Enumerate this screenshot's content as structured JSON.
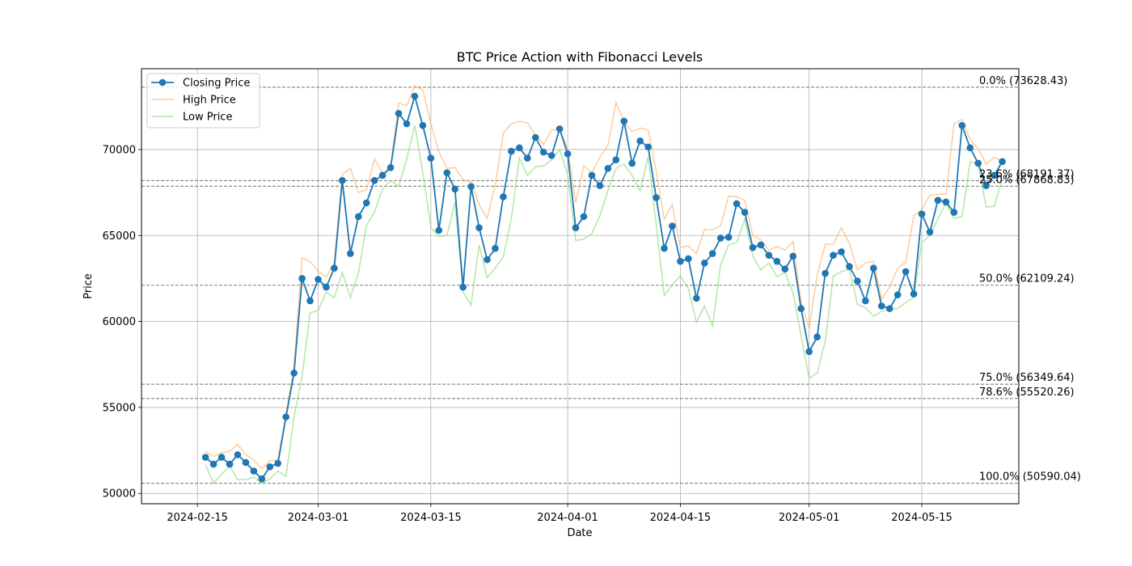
{
  "chart_data": {
    "type": "line",
    "title": "BTC Price Action with Fibonacci Levels",
    "xlabel": "Date",
    "ylabel": "Price",
    "xlim": [
      -7.95,
      101.05
    ],
    "ylim": [
      49400,
      74700
    ],
    "grid": true,
    "legend_position": "top-left",
    "x_start_date": "2024-02-16",
    "x_ticks": [
      {
        "day": -1,
        "label": "2024-02-15"
      },
      {
        "day": 14,
        "label": "2024-03-01"
      },
      {
        "day": 28,
        "label": "2024-03-15"
      },
      {
        "day": 45,
        "label": "2024-04-01"
      },
      {
        "day": 59,
        "label": "2024-04-15"
      },
      {
        "day": 75,
        "label": "2024-05-01"
      },
      {
        "day": 89,
        "label": "2024-05-15"
      }
    ],
    "y_ticks": [
      50000,
      55000,
      60000,
      65000,
      70000
    ],
    "y_tick_labels": [
      "50000",
      "55000",
      "60000",
      "65000",
      "70000"
    ],
    "series": [
      {
        "name": "Closing Price",
        "color": "#1f77b4",
        "marker": "circle",
        "values": [
          52100,
          51700,
          52100,
          51700,
          52250,
          51800,
          51300,
          50850,
          51550,
          51750,
          54450,
          57000,
          62500,
          61200,
          62450,
          62000,
          63100,
          68200,
          63950,
          66100,
          66900,
          68200,
          68500,
          68950,
          72100,
          71500,
          73100,
          71400,
          69500,
          65300,
          68650,
          67700,
          62000,
          67850,
          65450,
          63600,
          64250,
          67250,
          69900,
          70100,
          69500,
          70700,
          69850,
          69650,
          71200,
          69750,
          65450,
          66100,
          68500,
          67900,
          68900,
          69400,
          71650,
          69200,
          70500,
          70150,
          67200,
          64250,
          65550,
          63500,
          63650,
          61350,
          63400,
          63950,
          64850,
          64900,
          66850,
          66350,
          64300,
          64450,
          63850,
          63500,
          63050,
          63800,
          60750,
          58250,
          59100,
          62800,
          63850,
          64050,
          63200,
          62350,
          61200,
          63100,
          60900,
          60750,
          61550,
          62900,
          61600,
          66250,
          65200,
          67050,
          66950,
          66350,
          71400,
          70100,
          69200,
          67900,
          68500,
          69300
        ]
      },
      {
        "name": "High Price",
        "color": "#ffbb78",
        "values": [
          52450,
          52150,
          52350,
          52450,
          52850,
          52250,
          51950,
          51450,
          51900,
          51950,
          54600,
          57400,
          63700,
          63500,
          62900,
          62600,
          63400,
          68550,
          68900,
          67500,
          67650,
          69450,
          68600,
          68950,
          72700,
          72550,
          73700,
          73450,
          71500,
          69850,
          68900,
          68950,
          68250,
          68100,
          66800,
          66000,
          67950,
          70950,
          71500,
          71650,
          71550,
          70850,
          70300,
          71150,
          71150,
          70050,
          66900,
          69050,
          68650,
          69550,
          70250,
          72750,
          71600,
          71050,
          71250,
          71150,
          68750,
          65950,
          66800,
          64300,
          64400,
          63950,
          65350,
          65350,
          65550,
          67300,
          67250,
          67050,
          65000,
          64750,
          64150,
          64350,
          64150,
          64650,
          61100,
          59600,
          62700,
          64500,
          64500,
          65450,
          64550,
          63000,
          63400,
          63500,
          61300,
          62000,
          63100,
          63450,
          66150,
          66500,
          67350,
          67400,
          67400,
          71500,
          71750,
          70600,
          70050,
          69150,
          69550,
          69300
        ]
      },
      {
        "name": "Low Price",
        "color": "#98df8a",
        "values": [
          51650,
          50600,
          51100,
          51600,
          50800,
          50800,
          50950,
          50600,
          50850,
          51300,
          51000,
          54450,
          56800,
          60500,
          60650,
          61700,
          61400,
          62850,
          61400,
          62800,
          65600,
          66350,
          67700,
          68200,
          67850,
          69450,
          71400,
          68700,
          65450,
          64950,
          65000,
          66950,
          61700,
          60950,
          64450,
          62550,
          63100,
          63750,
          66000,
          69500,
          68500,
          69000,
          69050,
          69400,
          70000,
          68550,
          64700,
          64800,
          65100,
          66150,
          67600,
          68900,
          69150,
          68500,
          67600,
          69600,
          65650,
          61500,
          62150,
          62650,
          61900,
          59950,
          60900,
          59750,
          63300,
          64450,
          64600,
          65950,
          63800,
          63000,
          63400,
          62600,
          62850,
          61650,
          59150,
          56700,
          57000,
          58850,
          62650,
          62900,
          63050,
          61000,
          60800,
          60300,
          60600,
          60700,
          60750,
          61100,
          61400,
          64600,
          65000,
          65950,
          66900,
          66000,
          66100,
          69300,
          69150,
          66650,
          66700,
          68300
        ]
      }
    ],
    "fib_levels": [
      {
        "value": 73628.43,
        "label": "0.0% (73628.43)"
      },
      {
        "value": 68191.37,
        "label": "23.6% (68191.37)"
      },
      {
        "value": 67868.83,
        "label": "25.0% (67868.83)"
      },
      {
        "value": 62109.24,
        "label": "50.0% (62109.24)"
      },
      {
        "value": 56349.64,
        "label": "75.0% (56349.64)"
      },
      {
        "value": 55520.26,
        "label": "78.6% (55520.26)"
      },
      {
        "value": 50590.04,
        "label": "100.0% (50590.04)"
      }
    ],
    "fib_line_color": "#808080"
  }
}
